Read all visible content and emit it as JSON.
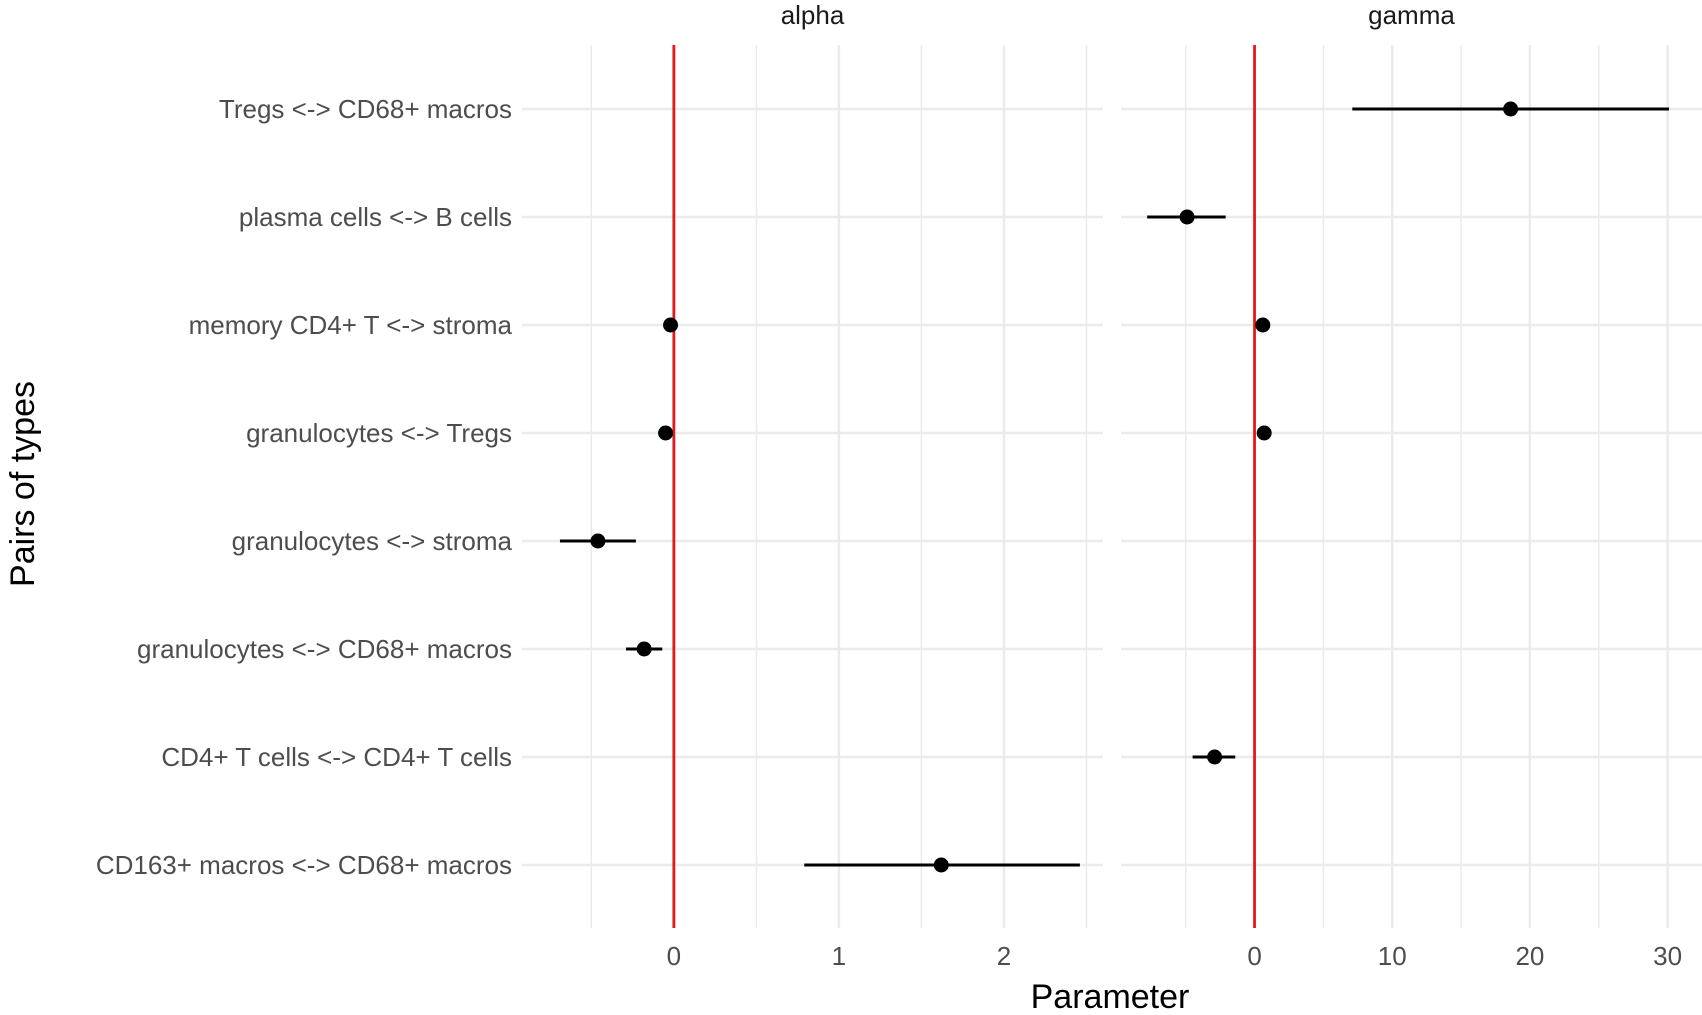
{
  "chart_data": {
    "type": "forest",
    "title": "",
    "xlabel": "Parameter",
    "ylabel": "Pairs of types",
    "grid": true,
    "legend": "none",
    "reference_line": {
      "x": 0,
      "color": "#e31a1c"
    },
    "colors": {
      "point": "#000000",
      "interval": "#000000",
      "grid": "#ebebeb"
    },
    "categories": [
      "Tregs <-> CD68+ macros",
      "plasma cells <-> B cells",
      "memory CD4+ T <-> stroma",
      "granulocytes <-> Tregs",
      "granulocytes <-> stroma",
      "granulocytes <-> CD68+ macros",
      "CD4+ T cells <-> CD4+ T cells",
      "CD163+ macros <-> CD68+ macros"
    ],
    "facets": [
      {
        "label": "alpha",
        "xlim": [
          -0.92,
          2.6
        ],
        "ticks": [
          0,
          1,
          2
        ],
        "tick_labels": [
          "0",
          "1",
          "2"
        ],
        "minor_ticks": [
          -0.5,
          0.5,
          1.5,
          2.5
        ],
        "points": [
          null,
          null,
          {
            "est": -0.02,
            "low": -0.02,
            "high": -0.02
          },
          {
            "est": -0.05,
            "low": -0.05,
            "high": -0.05
          },
          {
            "est": -0.46,
            "low": -0.69,
            "high": -0.23
          },
          {
            "est": -0.18,
            "low": -0.29,
            "high": -0.07
          },
          null,
          {
            "est": 1.62,
            "low": 0.79,
            "high": 2.46
          }
        ]
      },
      {
        "label": "gamma",
        "xlim": [
          -9.7,
          32.5
        ],
        "ticks": [
          0,
          10,
          20,
          30
        ],
        "tick_labels": [
          "0",
          "10",
          "20",
          "30"
        ],
        "minor_ticks": [
          -5,
          5,
          15,
          25
        ],
        "points": [
          {
            "est": 18.6,
            "low": 7.1,
            "high": 30.1
          },
          {
            "est": -4.9,
            "low": -7.8,
            "high": -2.1
          },
          {
            "est": 0.6,
            "low": 0.6,
            "high": 0.6
          },
          {
            "est": 0.7,
            "low": 0.7,
            "high": 0.7
          },
          null,
          null,
          {
            "est": -2.9,
            "low": -4.5,
            "high": -1.4
          },
          null
        ]
      }
    ]
  }
}
